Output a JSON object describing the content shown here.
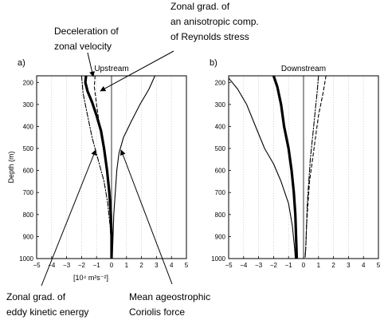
{
  "colors": {
    "axis": "#000000",
    "grid": "#bdbdbd",
    "line": "#000000"
  },
  "chart_data": [
    {
      "type": "line",
      "panel_letter": "a)",
      "title": "Upstream",
      "xlabel": "",
      "ylabel": "Depth (m)",
      "xlim": [
        -5,
        5
      ],
      "ylim": [
        1000,
        170
      ],
      "x_ticks": [
        -5,
        -4,
        -3,
        -2,
        -1,
        0,
        1,
        2,
        3,
        4,
        5
      ],
      "x_tick_labels": [
        "−5",
        "−4",
        "−3",
        "−2",
        "−1",
        "0",
        "1",
        "2",
        "3",
        "4",
        "5"
      ],
      "y_ticks": [
        200,
        300,
        400,
        500,
        600,
        700,
        800,
        900,
        1000
      ],
      "y_tick_labels": [
        "200",
        "300",
        "400",
        "500",
        "600",
        "700",
        "800",
        "900",
        "1000"
      ],
      "grid": "vertical dotted",
      "series": [
        {
          "style": "thick",
          "points": [
            [
              -1.7,
              170
            ],
            [
              -1.75,
              200
            ],
            [
              -1.6,
              240
            ],
            [
              -1.3,
              290
            ],
            [
              -1.0,
              350
            ],
            [
              -0.7,
              420
            ],
            [
              -0.5,
              500
            ],
            [
              -0.3,
              600
            ],
            [
              -0.15,
              700
            ],
            [
              -0.05,
              800
            ],
            [
              0.0,
              900
            ],
            [
              0.0,
              1000
            ]
          ]
        },
        {
          "style": "dashed",
          "points": [
            [
              -1.1,
              170
            ],
            [
              -1.15,
              220
            ],
            [
              -1.0,
              300
            ],
            [
              -0.8,
              400
            ],
            [
              -0.55,
              500
            ],
            [
              -0.3,
              600
            ],
            [
              -0.15,
              700
            ],
            [
              -0.05,
              800
            ],
            [
              0.0,
              900
            ],
            [
              0.0,
              1000
            ]
          ]
        },
        {
          "style": "dashdot",
          "points": [
            [
              -2.0,
              170
            ],
            [
              -1.9,
              250
            ],
            [
              -1.6,
              350
            ],
            [
              -1.3,
              450
            ],
            [
              -0.9,
              550
            ],
            [
              -0.5,
              650
            ],
            [
              -0.25,
              750
            ],
            [
              -0.1,
              850
            ],
            [
              0.0,
              950
            ],
            [
              0.0,
              1000
            ]
          ]
        },
        {
          "style": "thin",
          "points": [
            [
              2.9,
              170
            ],
            [
              2.5,
              230
            ],
            [
              1.9,
              300
            ],
            [
              1.3,
              380
            ],
            [
              0.8,
              450
            ],
            [
              0.5,
              520
            ],
            [
              0.35,
              600
            ],
            [
              0.25,
              700
            ],
            [
              0.15,
              800
            ],
            [
              0.1,
              900
            ],
            [
              0.05,
              1000
            ]
          ]
        }
      ]
    },
    {
      "type": "line",
      "panel_letter": "b)",
      "title": "Downstream",
      "xlabel": "",
      "ylabel": "",
      "xlim": [
        -5,
        5
      ],
      "ylim": [
        1000,
        170
      ],
      "x_ticks": [
        -5,
        -4,
        -3,
        -2,
        -1,
        0,
        1,
        2,
        3,
        4,
        5
      ],
      "x_tick_labels": [
        "−5",
        "−4",
        "−3",
        "−2",
        "−1",
        "0",
        "1",
        "2",
        "3",
        "4",
        "5"
      ],
      "y_ticks": [
        200,
        300,
        400,
        500,
        600,
        700,
        800,
        900,
        1000
      ],
      "y_tick_labels": [
        "200",
        "300",
        "400",
        "500",
        "600",
        "700",
        "800",
        "900",
        "1000"
      ],
      "grid": "vertical dotted",
      "series": [
        {
          "style": "thick",
          "points": [
            [
              -2.0,
              170
            ],
            [
              -1.75,
              220
            ],
            [
              -1.5,
              300
            ],
            [
              -1.3,
              400
            ],
            [
              -1.0,
              500
            ],
            [
              -0.8,
              600
            ],
            [
              -0.65,
              700
            ],
            [
              -0.55,
              800
            ],
            [
              -0.5,
              900
            ],
            [
              -0.45,
              1000
            ]
          ]
        },
        {
          "style": "thin",
          "points": [
            [
              -5.0,
              180
            ],
            [
              -4.4,
              230
            ],
            [
              -3.8,
              300
            ],
            [
              -3.2,
              400
            ],
            [
              -2.6,
              500
            ],
            [
              -2.0,
              570
            ],
            [
              -1.5,
              650
            ],
            [
              -1.0,
              750
            ],
            [
              -0.75,
              850
            ],
            [
              -0.6,
              950
            ],
            [
              -0.55,
              1000
            ]
          ]
        },
        {
          "style": "dashed",
          "points": [
            [
              1.5,
              170
            ],
            [
              1.3,
              250
            ],
            [
              1.0,
              350
            ],
            [
              0.8,
              450
            ],
            [
              0.6,
              550
            ],
            [
              0.4,
              650
            ],
            [
              0.3,
              750
            ],
            [
              0.2,
              850
            ],
            [
              0.15,
              950
            ],
            [
              0.1,
              1000
            ]
          ]
        },
        {
          "style": "dashdot",
          "points": [
            [
              1.0,
              170
            ],
            [
              0.9,
              250
            ],
            [
              0.75,
              350
            ],
            [
              0.6,
              450
            ],
            [
              0.45,
              550
            ],
            [
              0.35,
              650
            ],
            [
              0.25,
              750
            ],
            [
              0.2,
              850
            ],
            [
              0.15,
              950
            ],
            [
              0.1,
              1000
            ]
          ]
        }
      ]
    }
  ],
  "x_unit_label": "[10⁴ m²s⁻²]",
  "annotations": {
    "deceleration": [
      "Deceleration of",
      "zonal velocity"
    ],
    "reynolds": [
      "Zonal grad. of",
      "an anisotropic comp.",
      "of Reynolds stress"
    ],
    "eke": [
      "Zonal grad. of",
      "eddy kinetic energy"
    ],
    "coriolis": [
      "Mean ageostrophic",
      "Coriolis force"
    ]
  }
}
